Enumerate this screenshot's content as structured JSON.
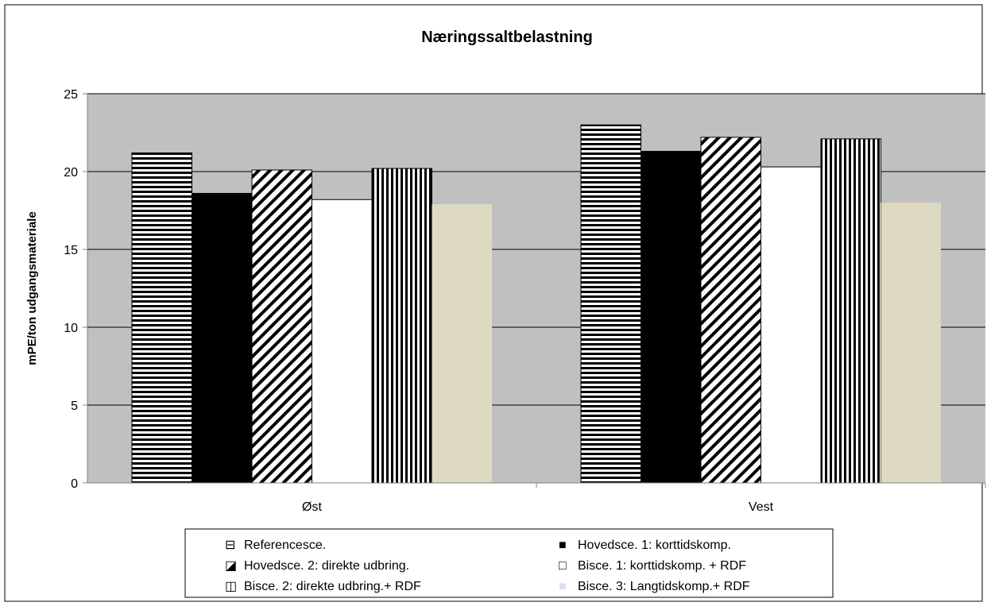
{
  "chart_data": {
    "type": "bar",
    "title": "Næringssaltbelastning",
    "xlabel": "",
    "ylabel": "mPE/ton udgangsmateriale",
    "ylim": [
      0,
      25
    ],
    "yticks": [
      0,
      5,
      10,
      15,
      20,
      25
    ],
    "grid": true,
    "legend_position": "bottom",
    "categories": [
      "Øst",
      "Vest"
    ],
    "series": [
      {
        "name": "Referencesce.",
        "values": [
          21.2,
          23.0
        ],
        "fill": "horizontal-stripes",
        "legend_marker": "⊟"
      },
      {
        "name": "Hovedsce. 1: korttidskomp.",
        "values": [
          18.6,
          21.3
        ],
        "fill": "solid-black",
        "legend_marker": "■"
      },
      {
        "name": "Hovedsce. 2: direkte udbring.",
        "values": [
          20.1,
          22.2
        ],
        "fill": "diagonal-stripes",
        "legend_marker": "◪"
      },
      {
        "name": "Bisce. 1: korttidskomp. + RDF",
        "values": [
          18.2,
          20.3
        ],
        "fill": "solid-white",
        "legend_marker": "□"
      },
      {
        "name": "Bisce. 2: direkte udbring.+ RDF",
        "values": [
          20.2,
          22.1
        ],
        "fill": "vertical-stripes",
        "legend_marker": "◫"
      },
      {
        "name": "Bisce. 3: Langtidskomp.+ RDF",
        "values": [
          17.9,
          18.0
        ],
        "fill": "solid-beige",
        "legend_marker": "■"
      }
    ],
    "colors": {
      "plot_background": "#c0c0c0",
      "beige_bar": "#ddd9c3",
      "legend_beige_marker": "#d9e1f2",
      "axis": "#808080"
    }
  }
}
